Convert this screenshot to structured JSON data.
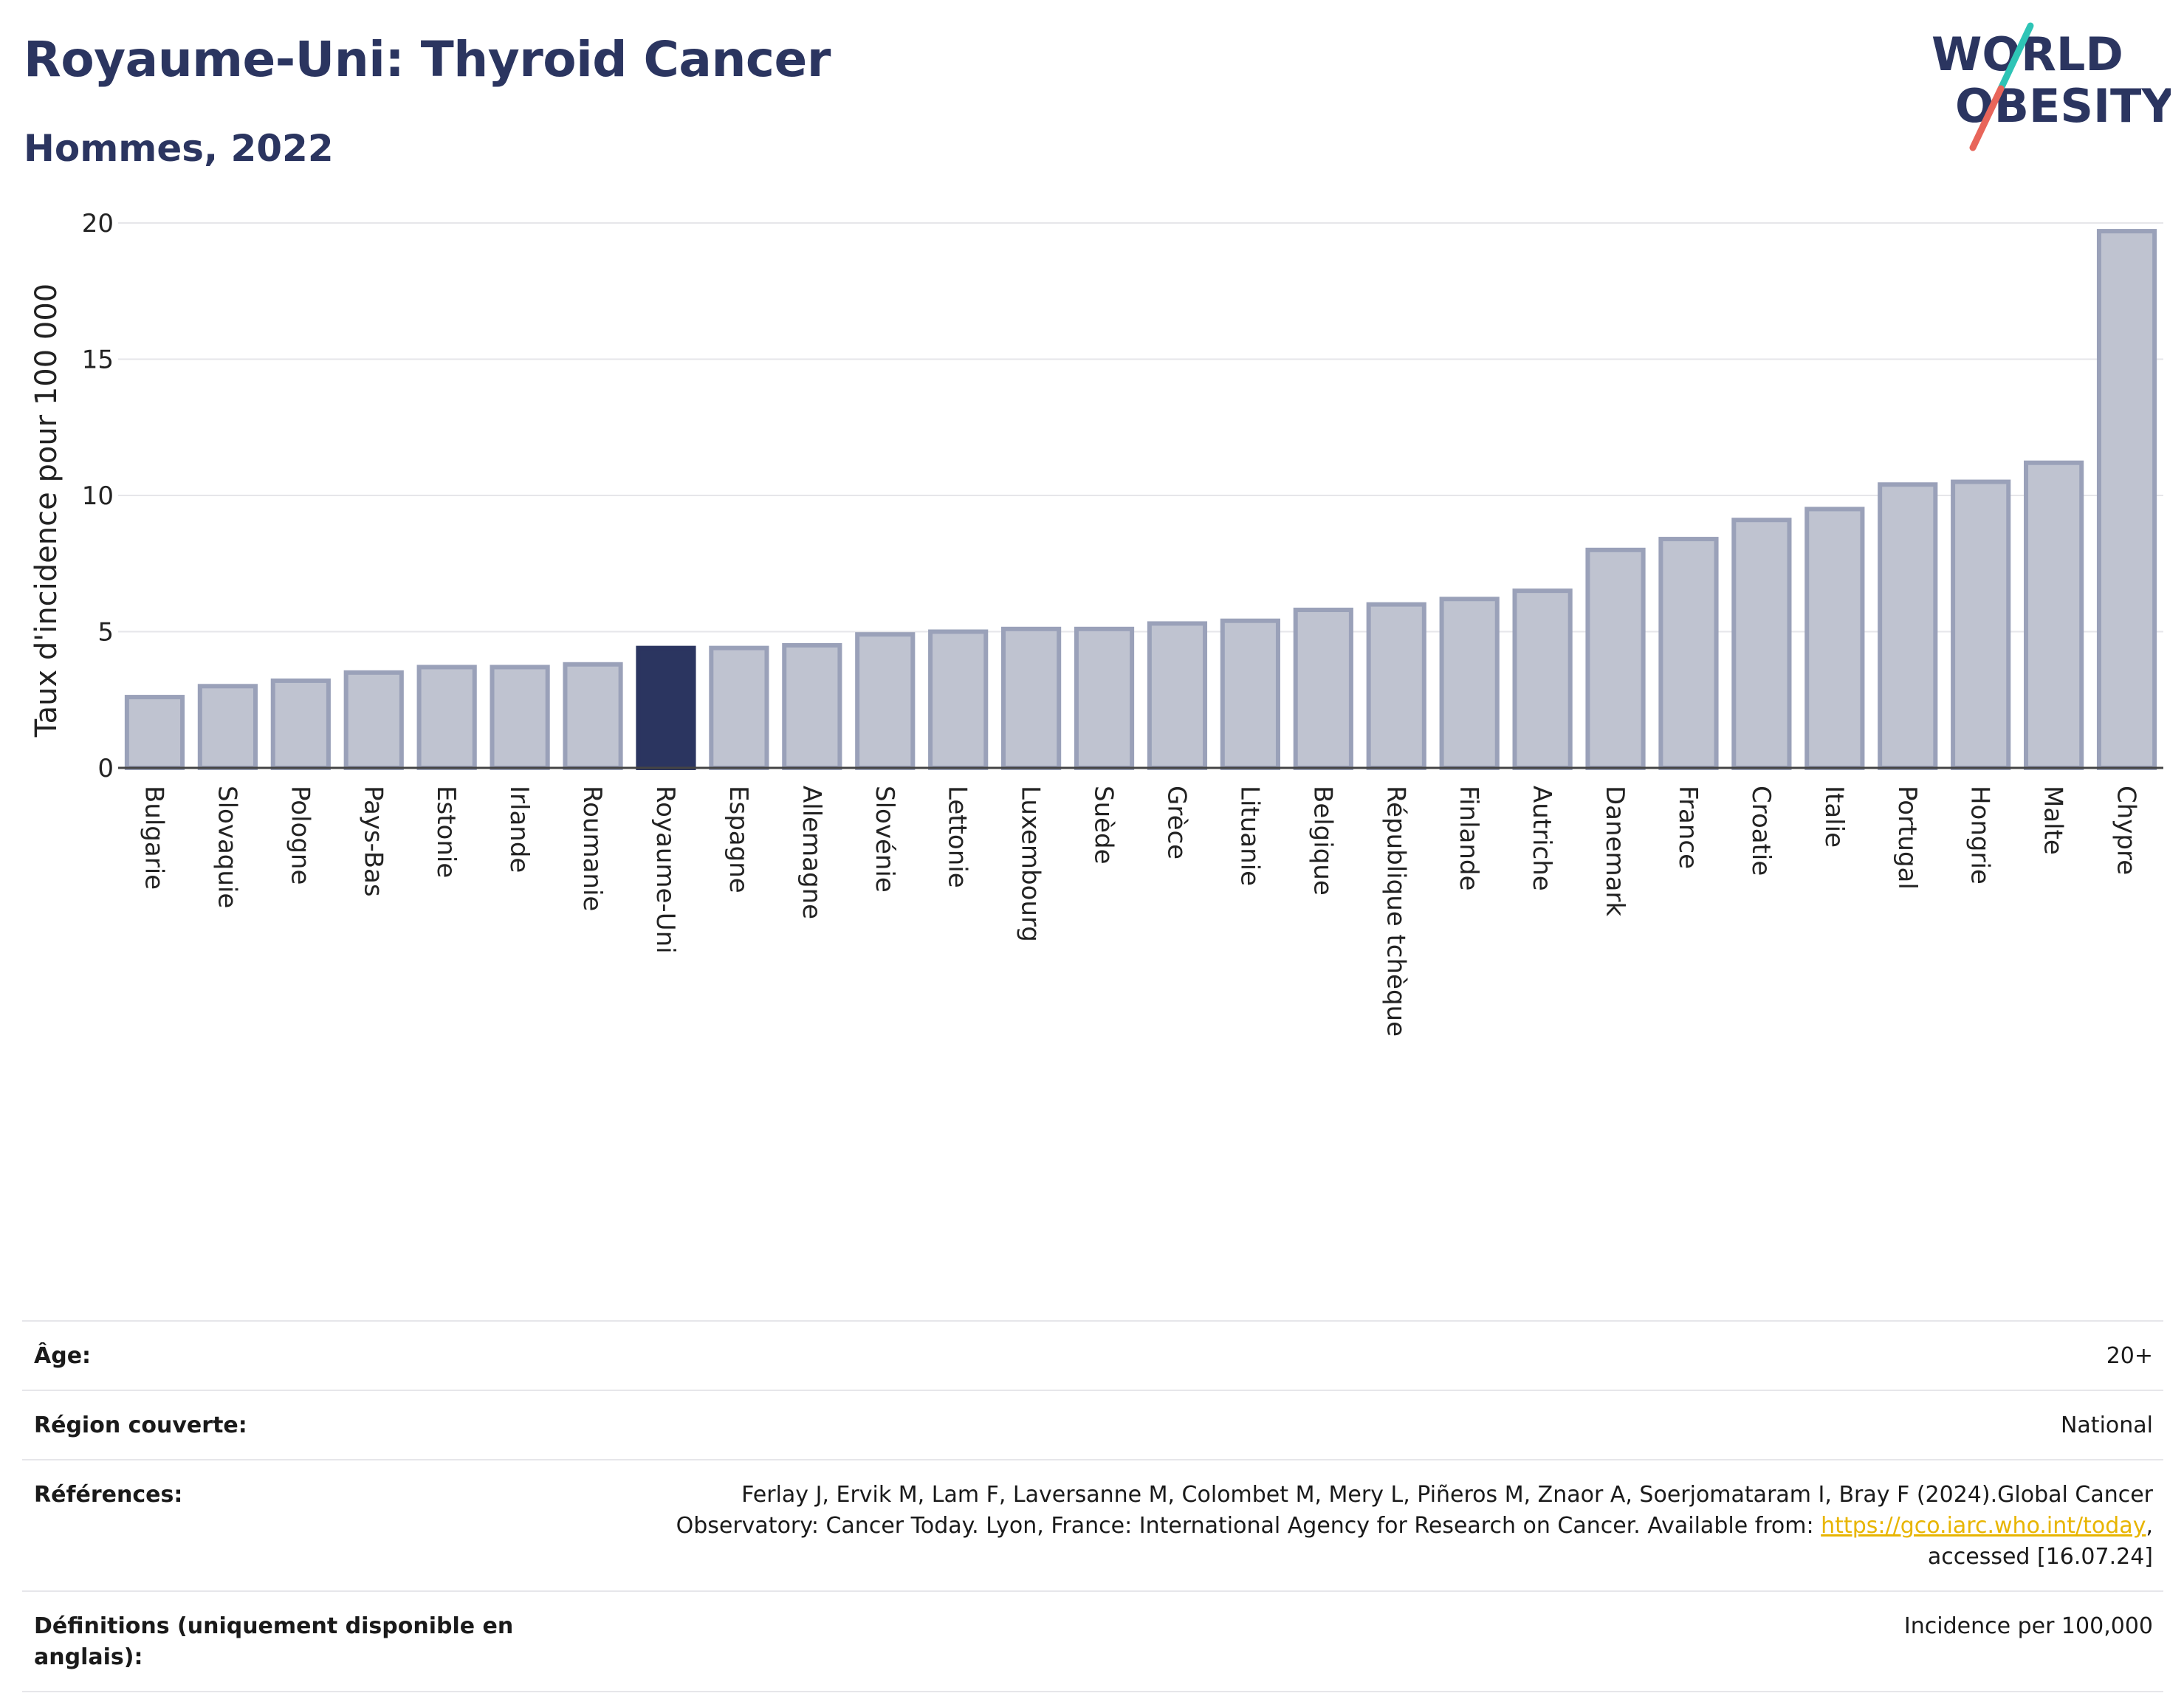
{
  "header": {
    "title": "Royaume-Uni: Thyroid Cancer",
    "subtitle": "Hommes, 2022",
    "logo_line1": "WORLD",
    "logo_line2": "OBESITY"
  },
  "colors": {
    "highlight": "#2b3560",
    "bar": "#bfc3d0",
    "bar_stroke": "#9aa1b9",
    "grid": "#e6e6ea",
    "logo_text": "#2b3560",
    "logo_teal": "#2ec4b6",
    "logo_red": "#e8655a",
    "link": "#e8b500"
  },
  "chart_data": {
    "type": "bar",
    "title": "Royaume-Uni: Thyroid Cancer",
    "subtitle": "Hommes, 2022",
    "xlabel": "",
    "ylabel": "Taux d'incidence pour 100 000",
    "ylim": [
      0,
      20
    ],
    "yticks": [
      0,
      5,
      10,
      15,
      20
    ],
    "grid": true,
    "highlight": "Royaume-Uni",
    "categories": [
      "Bulgarie",
      "Slovaquie",
      "Pologne",
      "Pays-Bas",
      "Estonie",
      "Irlande",
      "Roumanie",
      "Royaume-Uni",
      "Espagne",
      "Allemagne",
      "Slovénie",
      "Lettonie",
      "Luxembourg",
      "Suède",
      "Grèce",
      "Lituanie",
      "Belgique",
      "République tchèque",
      "Finlande",
      "Autriche",
      "Danemark",
      "France",
      "Croatie",
      "Italie",
      "Portugal",
      "Hongrie",
      "Malte",
      "Chypre"
    ],
    "values": [
      2.6,
      3.0,
      3.2,
      3.5,
      3.7,
      3.7,
      3.8,
      4.4,
      4.4,
      4.5,
      4.9,
      5.0,
      5.1,
      5.1,
      5.3,
      5.4,
      5.8,
      6.0,
      6.2,
      6.5,
      8.0,
      8.4,
      9.1,
      9.5,
      10.4,
      10.5,
      11.2,
      19.7
    ]
  },
  "info": {
    "age_label": "Âge:",
    "age_value": "20+",
    "region_label": "Région couverte:",
    "region_value": "National",
    "refs_label": "Références:",
    "refs_text1": "Ferlay J, Ervik M, Lam F, Laversanne M, Colombet M, Mery L, Piñeros M, Znaor A, Soerjomataram I, Bray F (2024).Global Cancer",
    "refs_text2": "Observatory: Cancer Today. Lyon, France: International Agency for Research on Cancer. Available from: ",
    "refs_link": "https://gco.iarc.who.int/today",
    "refs_text3": ",",
    "refs_text4": "accessed [16.07.24]",
    "defs_label": "Définitions (uniquement disponible en anglais):",
    "defs_value": "Incidence per 100,000"
  }
}
